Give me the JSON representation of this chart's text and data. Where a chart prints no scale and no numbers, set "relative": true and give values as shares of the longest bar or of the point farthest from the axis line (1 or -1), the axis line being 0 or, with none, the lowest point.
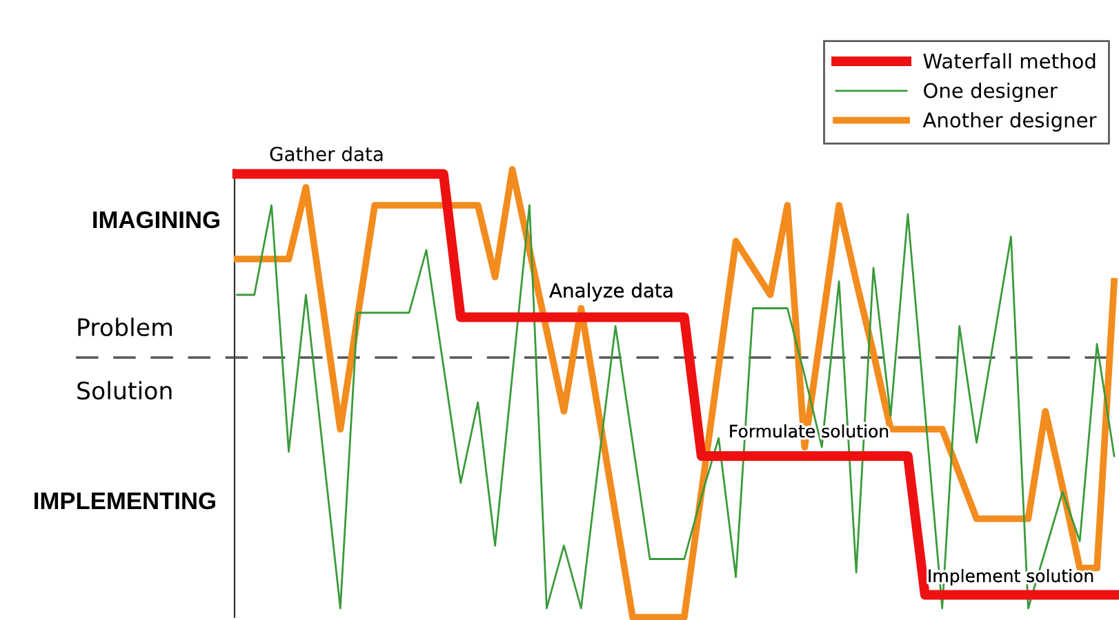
{
  "chart_data": {
    "type": "line",
    "relative": true,
    "legend": "top right",
    "categories": [
      null,
      null,
      null,
      null,
      null,
      null,
      null,
      null,
      null,
      null,
      null,
      null,
      null,
      null,
      null,
      null,
      null,
      null,
      null,
      null,
      null,
      null,
      null,
      null,
      null,
      null,
      null,
      null,
      null,
      null,
      null,
      null,
      null,
      null,
      null,
      null,
      null,
      null,
      null,
      null,
      null,
      null,
      null,
      null,
      null,
      null,
      null,
      null,
      null,
      null,
      null,
      null
    ],
    "series": [
      {
        "name": "Waterfall method",
        "color": "#ee1111",
        "values": [
          0.99,
          0.99,
          0.99,
          0.99,
          0.99,
          0.99,
          0.99,
          0.99,
          0.99,
          0.99,
          0.99,
          0.99,
          0.99,
          0.67,
          0.67,
          0.67,
          0.67,
          0.67,
          0.67,
          0.67,
          0.67,
          0.67,
          0.67,
          0.67,
          0.67,
          0.67,
          0.67,
          0.36,
          0.36,
          0.36,
          0.36,
          0.36,
          0.36,
          0.36,
          0.36,
          0.36,
          0.36,
          0.36,
          0.36,
          0.36,
          0.05,
          0.05,
          0.05,
          0.05,
          0.05,
          0.05,
          0.05,
          0.05,
          0.05,
          0.05,
          0.05,
          0.05
        ]
      },
      {
        "name": "One designer",
        "color": "#3a9a3a",
        "values": [
          0.72,
          0.72,
          0.92,
          0.37,
          0.72,
          0.37,
          0.02,
          0.68,
          0.68,
          0.68,
          0.68,
          0.82,
          0.56,
          0.3,
          0.48,
          0.16,
          0.54,
          0.92,
          0.02,
          0.16,
          0.02,
          0.34,
          0.65,
          0.39,
          0.13,
          0.13,
          0.13,
          0.27,
          0.4,
          0.09,
          0.69,
          0.69,
          0.69,
          0.54,
          0.38,
          0.75,
          0.1,
          0.78,
          0.45,
          0.9,
          0.46,
          0.02,
          0.65,
          0.39,
          0.62,
          0.85,
          0.02,
          0.15,
          0.28,
          0.17,
          0.61,
          0.36
        ]
      },
      {
        "name": "Another designer",
        "color": "#f28c1e",
        "values": [
          0.8,
          0.8,
          0.8,
          0.8,
          0.96,
          0.69,
          0.42,
          0.67,
          0.92,
          0.92,
          0.92,
          0.92,
          0.92,
          0.92,
          0.92,
          0.76,
          1.0,
          0.82,
          0.64,
          0.46,
          0.69,
          0.46,
          0.23,
          0.0,
          0.0,
          0.0,
          0.0,
          0.28,
          0.56,
          0.84,
          0.78,
          0.72,
          0.92,
          0.38,
          0.65,
          0.92,
          0.75,
          0.59,
          0.42,
          0.42,
          0.42,
          0.42,
          0.32,
          0.22,
          0.22,
          0.22,
          0.22,
          0.46,
          0.29,
          0.11,
          0.11,
          0.75
        ]
      }
    ],
    "ref_lines": [
      {
        "axis": "y",
        "value": 0.58,
        "color": "#555555",
        "line_style": "dashed"
      }
    ],
    "annotations": [
      "Gather data",
      "Analyze data",
      "Formulate solution",
      "Implement solution",
      "IMAGINING",
      "Problem",
      "Solution",
      "IMPLEMENTING"
    ]
  }
}
